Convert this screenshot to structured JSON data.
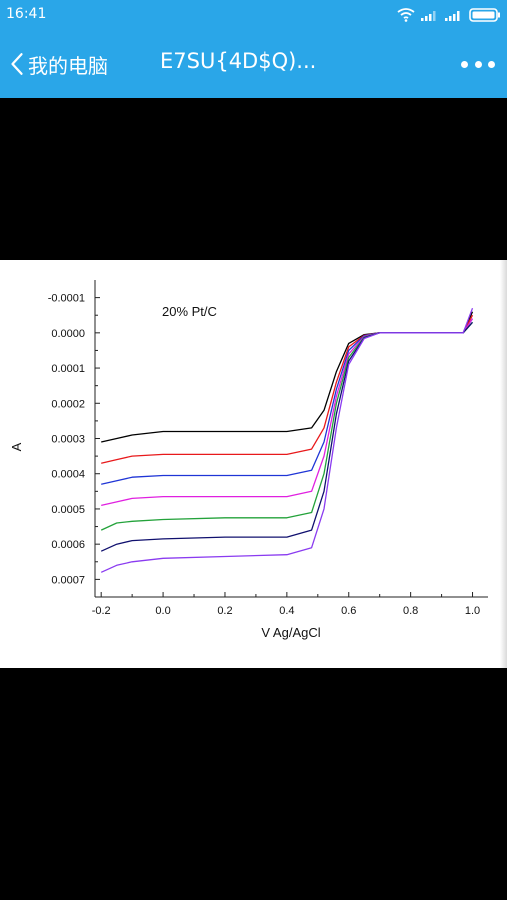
{
  "status_bar": {
    "time": "16:41",
    "icons": [
      "wifi-icon",
      "signal-icon",
      "signal-icon",
      "battery-icon"
    ]
  },
  "app_bar": {
    "back_label": "我的电脑",
    "file_title": "E7SU{4D$Q)...",
    "menu_icon": "more-dots-icon",
    "color": "#2aa6e8"
  },
  "chart_data": {
    "type": "line",
    "annotation": "20% Pt/C",
    "xlabel": "V  Ag/AgCl",
    "ylabel": "A",
    "xlim": [
      -0.22,
      1.05
    ],
    "ylim": [
      -0.00015,
      0.00075
    ],
    "y_inverted": true,
    "x_ticks": [
      "-0.2",
      "0.0",
      "0.2",
      "0.4",
      "0.6",
      "0.8",
      "1.0"
    ],
    "y_ticks": [
      "-0.0001",
      "0.0000",
      "0.0001",
      "0.0002",
      "0.0003",
      "0.0004",
      "0.0005",
      "0.0006",
      "0.0007"
    ],
    "series": [
      {
        "color": "#000000",
        "x": [
          -0.2,
          -0.15,
          -0.1,
          0.0,
          0.2,
          0.4,
          0.48,
          0.52,
          0.56,
          0.6,
          0.65,
          0.7,
          0.8,
          0.9,
          0.97,
          1.0
        ],
        "y": [
          0.00031,
          0.0003,
          0.00029,
          0.00028,
          0.00028,
          0.00028,
          0.00027,
          0.00022,
          0.00011,
          3e-05,
          5e-06,
          0.0,
          0.0,
          0.0,
          0.0,
          -6e-05
        ]
      },
      {
        "color": "#e8191b",
        "x": [
          -0.2,
          -0.15,
          -0.1,
          0.0,
          0.2,
          0.4,
          0.48,
          0.52,
          0.56,
          0.6,
          0.65,
          0.7,
          0.8,
          0.9,
          0.97,
          1.0
        ],
        "y": [
          0.00037,
          0.00036,
          0.00035,
          0.000345,
          0.000345,
          0.000345,
          0.00033,
          0.00027,
          0.00014,
          4e-05,
          7e-06,
          0.0,
          0.0,
          0.0,
          0.0,
          -5e-05
        ]
      },
      {
        "color": "#1f35d6",
        "x": [
          -0.2,
          -0.15,
          -0.1,
          0.0,
          0.2,
          0.4,
          0.48,
          0.52,
          0.56,
          0.6,
          0.65,
          0.7,
          0.8,
          0.9,
          0.97,
          1.0
        ],
        "y": [
          0.00043,
          0.00042,
          0.00041,
          0.000405,
          0.000405,
          0.000405,
          0.00039,
          0.00031,
          0.00016,
          5e-05,
          8e-06,
          0.0,
          0.0,
          0.0,
          0.0,
          -4e-05
        ]
      },
      {
        "color": "#e020e0",
        "x": [
          -0.2,
          -0.15,
          -0.1,
          0.0,
          0.2,
          0.4,
          0.48,
          0.52,
          0.56,
          0.6,
          0.65,
          0.7,
          0.8,
          0.9,
          0.97,
          1.0
        ],
        "y": [
          0.00049,
          0.00048,
          0.00047,
          0.000465,
          0.000465,
          0.000465,
          0.00045,
          0.00035,
          0.00018,
          6e-05,
          1e-05,
          0.0,
          0.0,
          0.0,
          0.0,
          -4e-05
        ]
      },
      {
        "color": "#23a23a",
        "x": [
          -0.2,
          -0.15,
          -0.1,
          0.0,
          0.2,
          0.4,
          0.48,
          0.52,
          0.56,
          0.6,
          0.65,
          0.7,
          0.8,
          0.9,
          0.97,
          1.0
        ],
        "y": [
          0.00056,
          0.00054,
          0.000535,
          0.00053,
          0.000525,
          0.000525,
          0.00051,
          0.0004,
          0.0002,
          7e-05,
          1.2e-05,
          0.0,
          0.0,
          0.0,
          0.0,
          -3e-05
        ]
      },
      {
        "color": "#10106e",
        "x": [
          -0.2,
          -0.15,
          -0.1,
          0.0,
          0.2,
          0.4,
          0.48,
          0.52,
          0.56,
          0.6,
          0.65,
          0.7,
          0.8,
          0.9,
          0.97,
          1.0
        ],
        "y": [
          0.00062,
          0.0006,
          0.00059,
          0.000585,
          0.00058,
          0.00058,
          0.00056,
          0.00045,
          0.00023,
          8e-05,
          1.4e-05,
          0.0,
          0.0,
          0.0,
          0.0,
          -3e-05
        ]
      },
      {
        "color": "#8a3bf0",
        "x": [
          -0.2,
          -0.15,
          -0.1,
          0.0,
          0.2,
          0.4,
          0.48,
          0.52,
          0.56,
          0.6,
          0.65,
          0.7,
          0.8,
          0.9,
          0.97,
          1.0
        ],
        "y": [
          0.00068,
          0.00066,
          0.00065,
          0.00064,
          0.000635,
          0.00063,
          0.00061,
          0.0005,
          0.00027,
          9e-05,
          1.6e-05,
          0.0,
          0.0,
          0.0,
          0.0,
          -7e-05
        ]
      }
    ]
  }
}
